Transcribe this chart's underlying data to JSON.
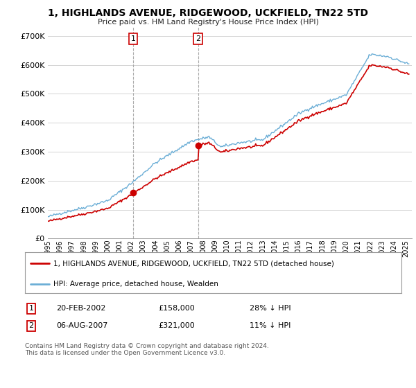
{
  "title": "1, HIGHLANDS AVENUE, RIDGEWOOD, UCKFIELD, TN22 5TD",
  "subtitle": "Price paid vs. HM Land Registry's House Price Index (HPI)",
  "legend_line1": "1, HIGHLANDS AVENUE, RIDGEWOOD, UCKFIELD, TN22 5TD (detached house)",
  "legend_line2": "HPI: Average price, detached house, Wealden",
  "ann1_date": "20-FEB-2002",
  "ann1_price": "£158,000",
  "ann1_hpi": "28% ↓ HPI",
  "ann2_date": "06-AUG-2007",
  "ann2_price": "£321,000",
  "ann2_hpi": "11% ↓ HPI",
  "footer1": "Contains HM Land Registry data © Crown copyright and database right 2024.",
  "footer2": "This data is licensed under the Open Government Licence v3.0.",
  "hpi_color": "#6baed6",
  "price_color": "#cc0000",
  "sale1_price": 158000,
  "sale2_price": 321000,
  "sale1_year": 2002.136,
  "sale2_year": 2007.589,
  "ylim": [
    0,
    730000
  ],
  "yticks": [
    0,
    100000,
    200000,
    300000,
    400000,
    500000,
    600000,
    700000
  ],
  "xlim_start": 1995.0,
  "xlim_end": 2025.5,
  "bg_color": "#ffffff",
  "grid_color": "#cccccc"
}
